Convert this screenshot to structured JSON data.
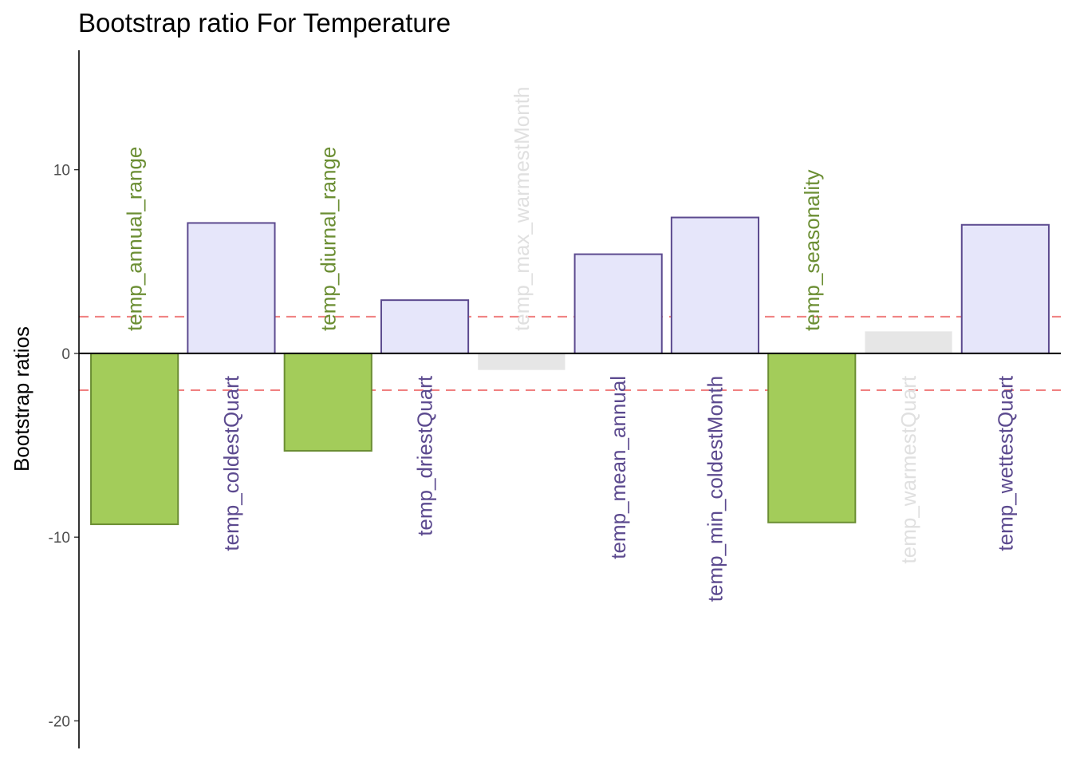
{
  "chart_data": {
    "type": "bar",
    "title": "Bootstrap ratio For Temperature",
    "xlabel": "",
    "ylabel": "Bootstrap ratios",
    "ylim": [
      -21.5,
      16.5
    ],
    "yticks": [
      10,
      0,
      -10,
      -20
    ],
    "ytick_labels": [
      "10",
      "0",
      "-10",
      "-20"
    ],
    "threshold_lines": [
      2,
      -2
    ],
    "grid": false,
    "legend": "none",
    "categories": [
      "temp_annual_range",
      "temp_coldestQuart",
      "temp_diurnal_range",
      "temp_driestQuart",
      "temp_max_warmestMonth",
      "temp_mean_annual",
      "temp_min_coldestMonth",
      "temp_seasonality",
      "temp_warmestQuart",
      "temp_wettestQuart"
    ],
    "values": [
      -9.3,
      7.1,
      -5.3,
      2.9,
      -0.9,
      5.4,
      7.4,
      -9.2,
      1.2,
      7.0
    ],
    "colors": {
      "negative_significant_fill": "#a3cc5a",
      "negative_significant_stroke": "#6b8e33",
      "negative_significant_text": "#6b8e33",
      "positive_significant_fill": "#e6e6fa",
      "positive_significant_stroke": "#5c4a8f",
      "positive_significant_text": "#5c4a8f",
      "nonsignificant_fill": "#e6e6e6",
      "nonsignificant_text": "#e0e0e0",
      "threshold_line": "#f08080",
      "axis": "#000000"
    }
  }
}
